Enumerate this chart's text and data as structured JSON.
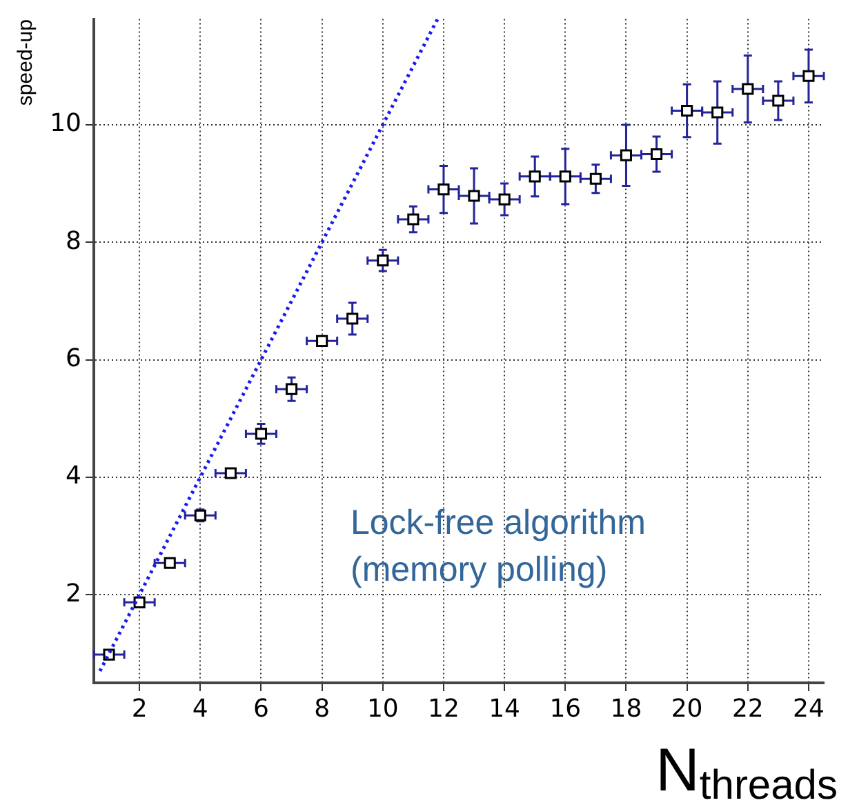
{
  "chart_data": {
    "type": "scatter",
    "xlabel": "N$_{threads}$",
    "ylabel": "speed-up",
    "xlim": [
      0.5,
      24.5
    ],
    "xticks": [
      2,
      4,
      6,
      8,
      10,
      12,
      14,
      16,
      18,
      20,
      22,
      24
    ],
    "ylim": [
      0.5,
      11.8
    ],
    "yticks": [
      2,
      4,
      6,
      8,
      10
    ],
    "grid": true,
    "legend": false,
    "marker": "square",
    "annotations": [
      "Lock-free algorithm\n(memory polling)"
    ],
    "series": [
      {
        "type": "line",
        "color": "#1a1aee",
        "line_style": "dotted",
        "marker": "none",
        "x": [
          0.7,
          11.8
        ],
        "values": [
          0.7,
          11.8
        ]
      },
      {
        "color": "#000000",
        "x": [
          1,
          2,
          3,
          4,
          5,
          6,
          7,
          8,
          9,
          10,
          11,
          12,
          13,
          14,
          15,
          16,
          17,
          18,
          19,
          20,
          21,
          22,
          23,
          24
        ],
        "values": [
          0.98,
          1.87,
          2.54,
          3.35,
          4.07,
          4.74,
          5.5,
          6.32,
          6.7,
          7.69,
          8.39,
          8.9,
          8.79,
          8.73,
          9.12,
          9.12,
          9.08,
          9.48,
          9.5,
          10.24,
          10.21,
          10.61,
          10.41,
          10.83
        ],
        "errors": [
          null,
          null,
          null,
          0.1,
          null,
          0.17,
          0.2,
          null,
          0.27,
          0.18,
          0.22,
          0.4,
          0.47,
          0.27,
          0.34,
          0.47,
          0.24,
          0.52,
          0.3,
          0.45,
          0.53,
          0.57,
          0.33,
          0.45
        ],
        "xerrors": [
          0.5,
          0.5,
          0.5,
          0.5,
          0.5,
          0.5,
          0.5,
          0.5,
          0.5,
          0.5,
          0.5,
          0.5,
          0.5,
          0.5,
          0.5,
          0.5,
          0.5,
          0.5,
          0.5,
          0.5,
          0.5,
          0.5,
          0.5,
          0.5
        ]
      }
    ]
  }
}
